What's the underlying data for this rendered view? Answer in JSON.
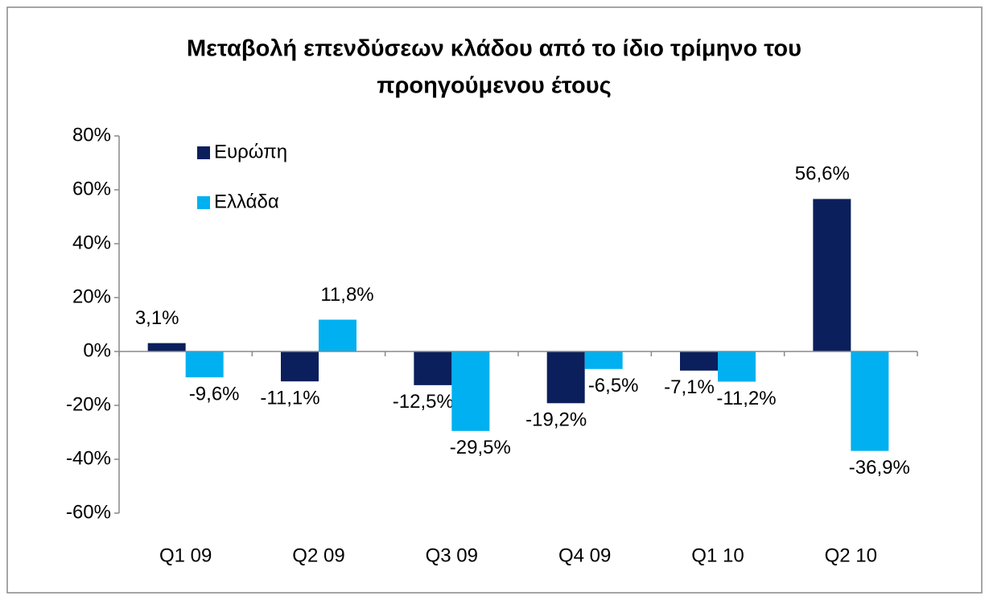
{
  "chart_data": {
    "type": "bar",
    "title": [
      "Μεταβολή επενδύσεων κλάδου από το ίδιο τρίμηνο του",
      "προηγούμενου έτους"
    ],
    "categories": [
      "Q1 09",
      "Q2 09",
      "Q3 09",
      "Q4 09",
      "Q1 10",
      "Q2 10"
    ],
    "series": [
      {
        "name": "Ευρώπη",
        "color": "#0b1f5c",
        "values": [
          3.1,
          -11.1,
          -12.5,
          -19.2,
          -7.1,
          56.6
        ],
        "value_labels": [
          "3,1%",
          "-11,1%",
          "-12,5%",
          "-19,2%",
          "-7,1%",
          "56,6%"
        ]
      },
      {
        "name": "Ελλάδα",
        "color": "#00b0f0",
        "values": [
          -9.6,
          11.8,
          -29.5,
          -6.5,
          -11.2,
          -36.9
        ],
        "value_labels": [
          "-9,6%",
          "11,8%",
          "-29,5%",
          "-6,5%",
          "-11,2%",
          "-36,9%"
        ]
      }
    ],
    "ylim": [
      -60,
      80
    ],
    "yticks": [
      {
        "value": -60,
        "label": "-60%"
      },
      {
        "value": -40,
        "label": "-40%"
      },
      {
        "value": -20,
        "label": "-20%"
      },
      {
        "value": 0,
        "label": "0%"
      },
      {
        "value": 20,
        "label": "20%"
      },
      {
        "value": 40,
        "label": "40%"
      },
      {
        "value": 60,
        "label": "60%"
      },
      {
        "value": 80,
        "label": "80%"
      }
    ],
    "legend": "top-left"
  }
}
